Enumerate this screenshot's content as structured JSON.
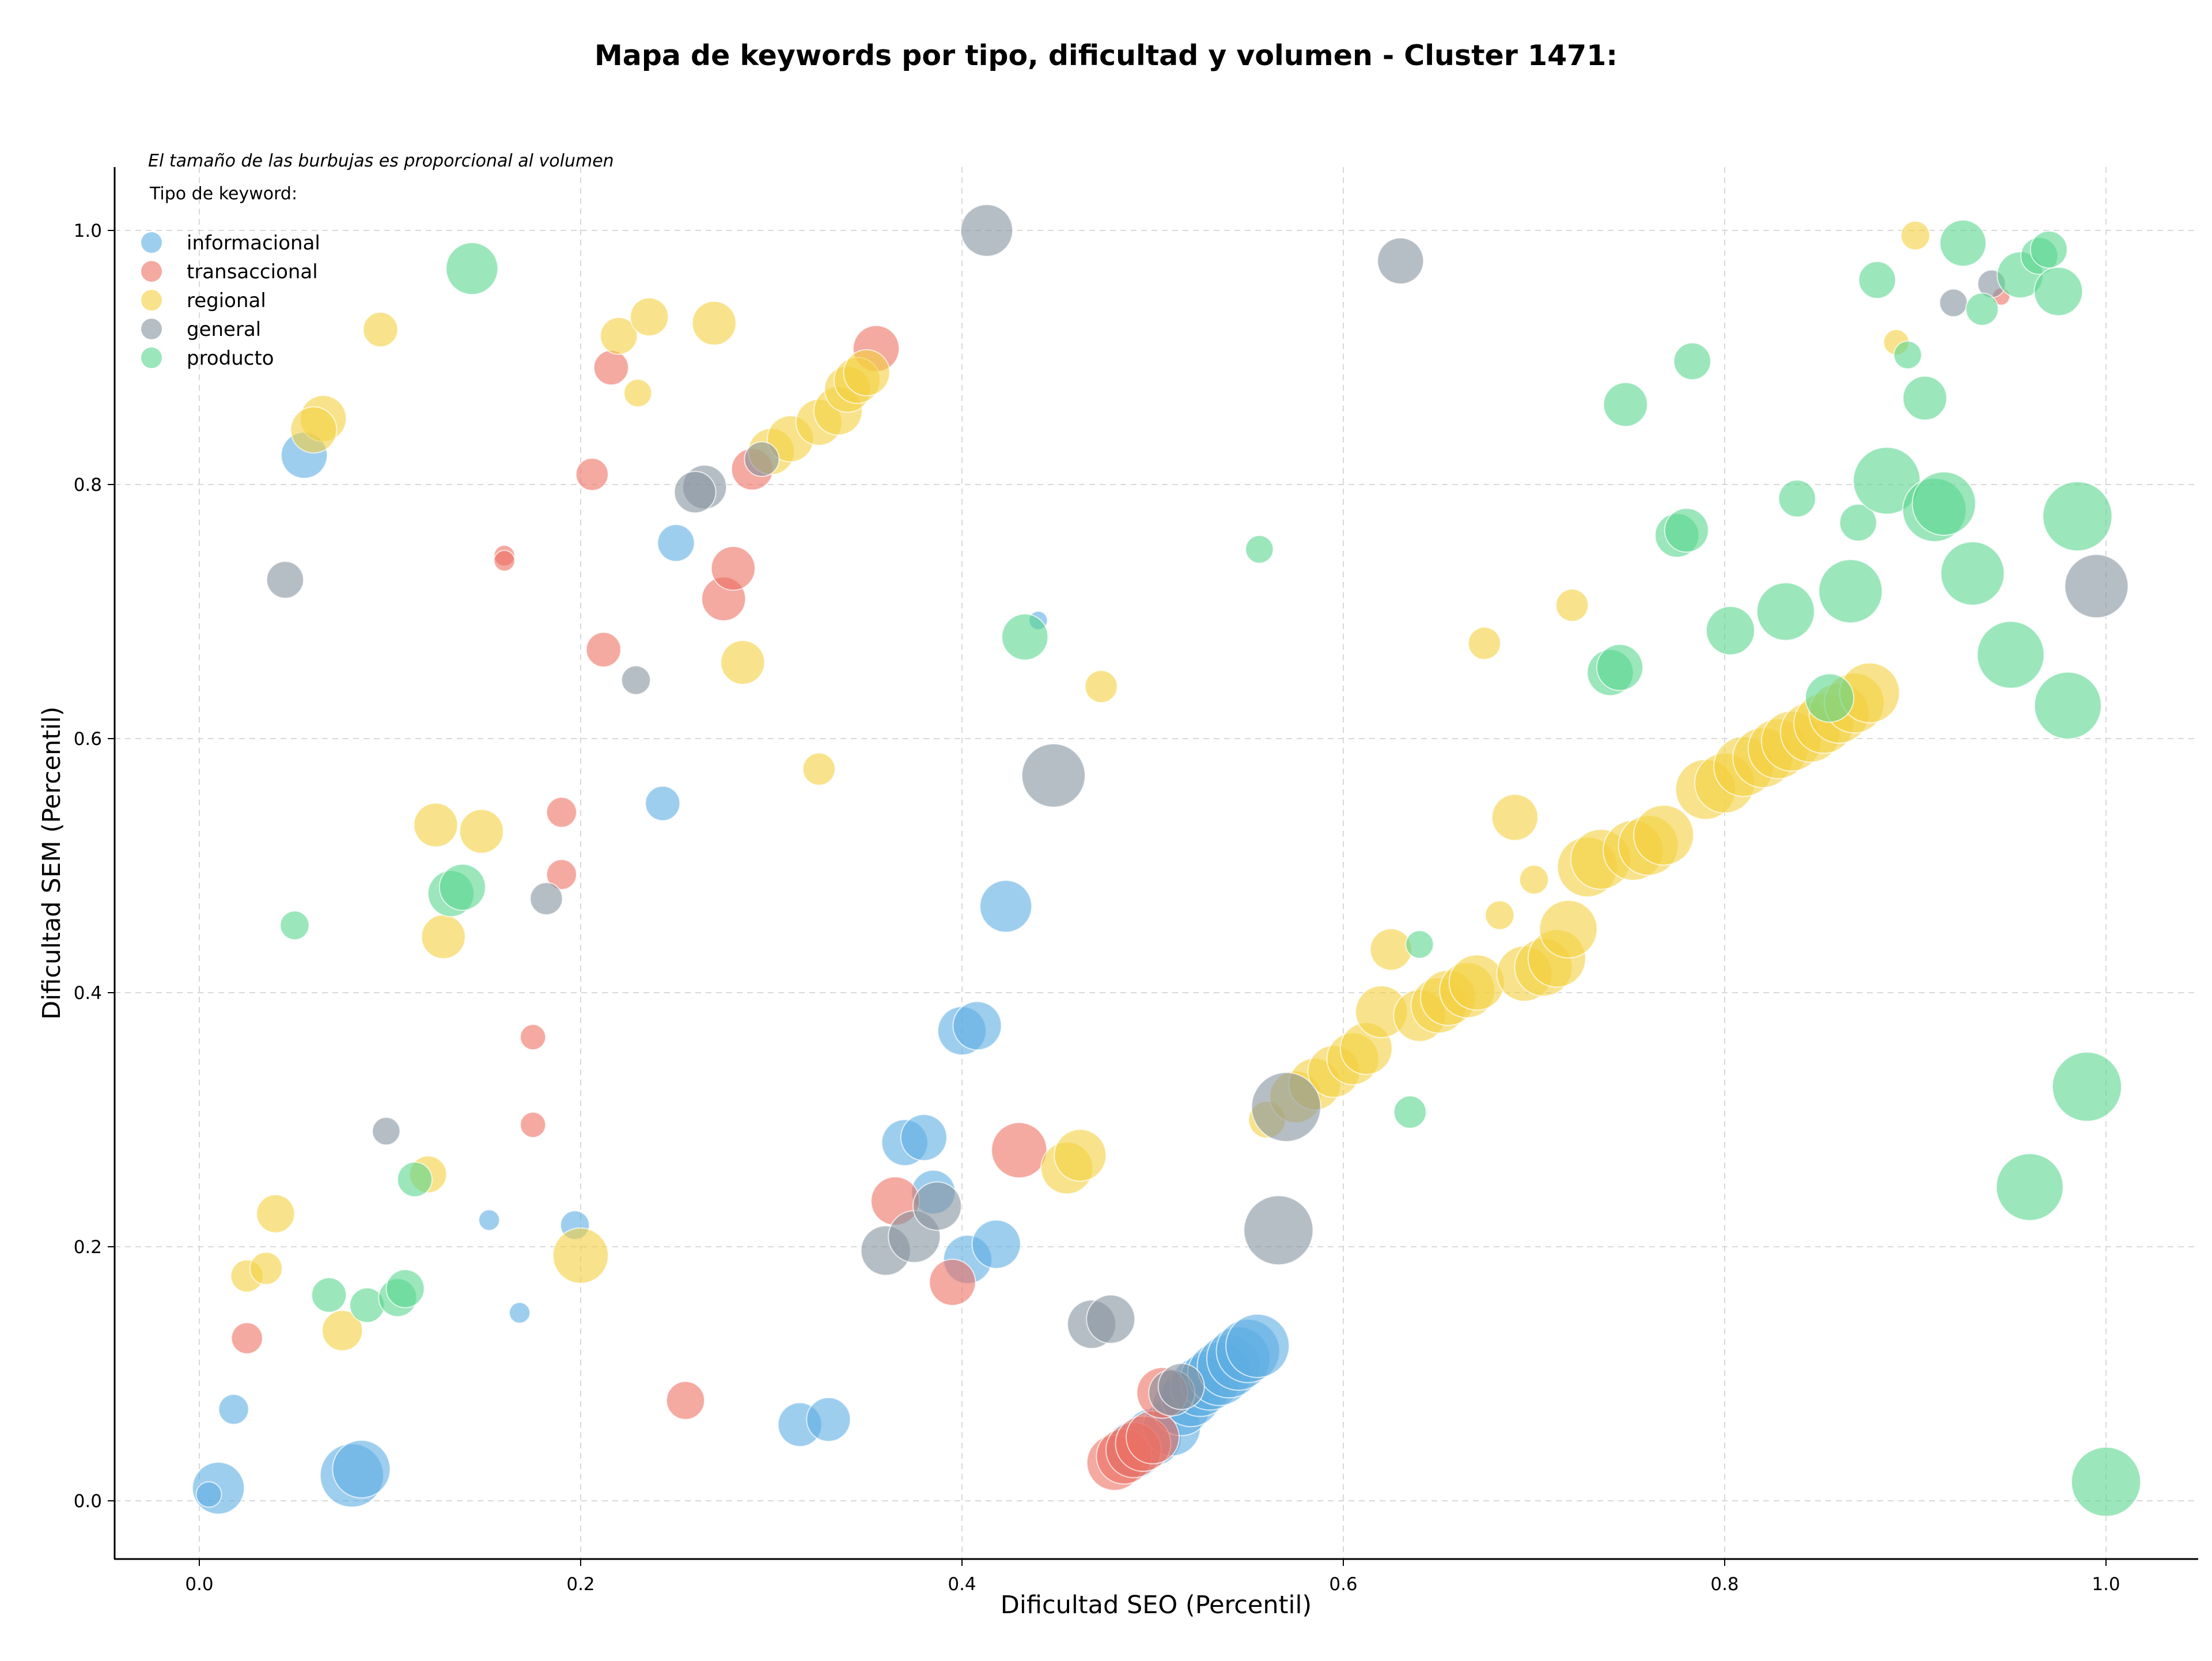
{
  "chart_data": {
    "type": "scatter",
    "title": "Mapa de keywords por tipo, dificultad y volumen - Cluster 1471:",
    "xlabel": "Dificultad SEO (Percentil)",
    "ylabel": "Dificultad SEM (Percentil)",
    "xlim": [
      -0.044,
      1.05
    ],
    "ylim": [
      -0.045,
      1.05
    ],
    "xticks": [
      "0.0",
      "0.2",
      "0.4",
      "0.6",
      "0.8",
      "1.0"
    ],
    "yticks": [
      "0.0",
      "0.2",
      "0.4",
      "0.6",
      "0.8",
      "1.0"
    ],
    "grid": true,
    "legend_placement": "top-left",
    "note": "El tamaño de las burbujas es proporcional al volumen",
    "legend_title": "Tipo de keyword:",
    "series": [
      {
        "name": "informacional",
        "color": "#5dade2",
        "points": [
          [
            0.01,
            0.01,
            45
          ],
          [
            0.005,
            0.005,
            22
          ],
          [
            0.018,
            0.072,
            26
          ],
          [
            0.08,
            0.02,
            55
          ],
          [
            0.085,
            0.025,
            50
          ],
          [
            0.055,
            0.823,
            40
          ],
          [
            0.152,
            0.221,
            18
          ],
          [
            0.168,
            0.148,
            18
          ],
          [
            0.197,
            0.217,
            25
          ],
          [
            0.25,
            0.754,
            32
          ],
          [
            0.243,
            0.549,
            30
          ],
          [
            0.315,
            0.06,
            38
          ],
          [
            0.33,
            0.064,
            38
          ],
          [
            0.37,
            0.282,
            40
          ],
          [
            0.38,
            0.286,
            40
          ],
          [
            0.385,
            0.243,
            38
          ],
          [
            0.4,
            0.37,
            42
          ],
          [
            0.408,
            0.374,
            42
          ],
          [
            0.403,
            0.19,
            42
          ],
          [
            0.418,
            0.202,
            42
          ],
          [
            0.423,
            0.468,
            45
          ],
          [
            0.44,
            0.693,
            16
          ],
          [
            0.49,
            0.04,
            50
          ],
          [
            0.5,
            0.05,
            50
          ],
          [
            0.51,
            0.058,
            50
          ],
          [
            0.515,
            0.074,
            50
          ],
          [
            0.52,
            0.082,
            52
          ],
          [
            0.525,
            0.09,
            52
          ],
          [
            0.53,
            0.095,
            52
          ],
          [
            0.535,
            0.1,
            55
          ],
          [
            0.54,
            0.106,
            55
          ],
          [
            0.545,
            0.112,
            55
          ],
          [
            0.55,
            0.118,
            55
          ],
          [
            0.555,
            0.122,
            55
          ]
        ]
      },
      {
        "name": "transaccional",
        "color": "#ec7063",
        "points": [
          [
            0.025,
            0.128,
            27
          ],
          [
            0.16,
            0.744,
            18
          ],
          [
            0.16,
            0.74,
            18
          ],
          [
            0.175,
            0.365,
            22
          ],
          [
            0.175,
            0.296,
            22
          ],
          [
            0.19,
            0.542,
            26
          ],
          [
            0.19,
            0.493,
            26
          ],
          [
            0.206,
            0.808,
            28
          ],
          [
            0.212,
            0.67,
            30
          ],
          [
            0.216,
            0.892,
            30
          ],
          [
            0.255,
            0.079,
            33
          ],
          [
            0.275,
            0.71,
            38
          ],
          [
            0.28,
            0.734,
            38
          ],
          [
            0.29,
            0.812,
            36
          ],
          [
            0.355,
            0.907,
            40
          ],
          [
            0.365,
            0.236,
            42
          ],
          [
            0.395,
            0.172,
            40
          ],
          [
            0.43,
            0.276,
            48
          ],
          [
            0.48,
            0.03,
            48
          ],
          [
            0.485,
            0.035,
            48
          ],
          [
            0.49,
            0.04,
            48
          ],
          [
            0.495,
            0.045,
            48
          ],
          [
            0.5,
            0.05,
            46
          ],
          [
            0.505,
            0.085,
            44
          ],
          [
            0.945,
            0.948,
            15
          ]
        ]
      },
      {
        "name": "regional",
        "color": "#f4d03f",
        "points": [
          [
            0.025,
            0.177,
            28
          ],
          [
            0.035,
            0.183,
            28
          ],
          [
            0.04,
            0.226,
            33
          ],
          [
            0.065,
            0.852,
            40
          ],
          [
            0.06,
            0.843,
            40
          ],
          [
            0.075,
            0.134,
            35
          ],
          [
            0.095,
            0.922,
            30
          ],
          [
            0.12,
            0.257,
            32
          ],
          [
            0.124,
            0.532,
            38
          ],
          [
            0.128,
            0.444,
            38
          ],
          [
            0.148,
            0.527,
            38
          ],
          [
            0.2,
            0.193,
            48
          ],
          [
            0.22,
            0.917,
            32
          ],
          [
            0.23,
            0.872,
            24
          ],
          [
            0.236,
            0.932,
            33
          ],
          [
            0.27,
            0.927,
            38
          ],
          [
            0.285,
            0.66,
            38
          ],
          [
            0.3,
            0.826,
            40
          ],
          [
            0.31,
            0.836,
            40
          ],
          [
            0.325,
            0.849,
            40
          ],
          [
            0.335,
            0.858,
            42
          ],
          [
            0.34,
            0.875,
            40
          ],
          [
            0.345,
            0.882,
            40
          ],
          [
            0.35,
            0.888,
            40
          ],
          [
            0.325,
            0.576,
            28
          ],
          [
            0.455,
            0.262,
            45
          ],
          [
            0.462,
            0.272,
            45
          ],
          [
            0.473,
            0.641,
            28
          ],
          [
            0.56,
            0.3,
            32
          ],
          [
            0.575,
            0.318,
            45
          ],
          [
            0.585,
            0.328,
            45
          ],
          [
            0.595,
            0.338,
            45
          ],
          [
            0.605,
            0.348,
            45
          ],
          [
            0.612,
            0.356,
            45
          ],
          [
            0.62,
            0.385,
            45
          ],
          [
            0.625,
            0.434,
            36
          ],
          [
            0.64,
            0.382,
            45
          ],
          [
            0.65,
            0.39,
            48
          ],
          [
            0.655,
            0.396,
            48
          ],
          [
            0.665,
            0.402,
            48
          ],
          [
            0.67,
            0.408,
            48
          ],
          [
            0.674,
            0.675,
            28
          ],
          [
            0.682,
            0.461,
            25
          ],
          [
            0.69,
            0.538,
            40
          ],
          [
            0.695,
            0.415,
            48
          ],
          [
            0.7,
            0.489,
            25
          ],
          [
            0.705,
            0.42,
            50
          ],
          [
            0.712,
            0.427,
            50
          ],
          [
            0.718,
            0.45,
            50
          ],
          [
            0.72,
            0.705,
            28
          ],
          [
            0.728,
            0.499,
            52
          ],
          [
            0.735,
            0.505,
            52
          ],
          [
            0.752,
            0.512,
            52
          ],
          [
            0.76,
            0.516,
            52
          ],
          [
            0.768,
            0.524,
            52
          ],
          [
            0.79,
            0.56,
            52
          ],
          [
            0.8,
            0.565,
            52
          ],
          [
            0.81,
            0.578,
            52
          ],
          [
            0.82,
            0.585,
            52
          ],
          [
            0.828,
            0.592,
            52
          ],
          [
            0.835,
            0.598,
            52
          ],
          [
            0.845,
            0.605,
            52
          ],
          [
            0.852,
            0.612,
            52
          ],
          [
            0.86,
            0.62,
            52
          ],
          [
            0.868,
            0.628,
            52
          ],
          [
            0.876,
            0.636,
            52
          ],
          [
            0.89,
            0.912,
            22
          ],
          [
            0.9,
            0.996,
            25
          ]
        ]
      },
      {
        "name": "general",
        "color": "#85929e",
        "points": [
          [
            0.045,
            0.725,
            32
          ],
          [
            0.098,
            0.291,
            24
          ],
          [
            0.182,
            0.474,
            28
          ],
          [
            0.229,
            0.646,
            25
          ],
          [
            0.265,
            0.798,
            38
          ],
          [
            0.26,
            0.794,
            36
          ],
          [
            0.295,
            0.82,
            30
          ],
          [
            0.36,
            0.197,
            43
          ],
          [
            0.375,
            0.208,
            45
          ],
          [
            0.387,
            0.232,
            42
          ],
          [
            0.413,
            1.0,
            45
          ],
          [
            0.448,
            0.571,
            55
          ],
          [
            0.468,
            0.139,
            42
          ],
          [
            0.478,
            0.143,
            42
          ],
          [
            0.51,
            0.085,
            40
          ],
          [
            0.515,
            0.09,
            40
          ],
          [
            0.566,
            0.213,
            60
          ],
          [
            0.57,
            0.31,
            60
          ],
          [
            0.63,
            0.976,
            40
          ],
          [
            0.92,
            0.943,
            24
          ],
          [
            0.94,
            0.958,
            24
          ],
          [
            0.995,
            0.72,
            55
          ]
        ]
      },
      {
        "name": "producto",
        "color": "#58d68d",
        "points": [
          [
            0.05,
            0.453,
            25
          ],
          [
            0.068,
            0.162,
            30
          ],
          [
            0.088,
            0.154,
            30
          ],
          [
            0.104,
            0.16,
            33
          ],
          [
            0.108,
            0.167,
            33
          ],
          [
            0.113,
            0.253,
            30
          ],
          [
            0.132,
            0.478,
            40
          ],
          [
            0.138,
            0.483,
            40
          ],
          [
            0.143,
            0.97,
            45
          ],
          [
            0.433,
            0.68,
            40
          ],
          [
            0.556,
            0.749,
            24
          ],
          [
            0.635,
            0.306,
            28
          ],
          [
            0.64,
            0.438,
            24
          ],
          [
            0.74,
            0.652,
            40
          ],
          [
            0.745,
            0.656,
            40
          ],
          [
            0.748,
            0.863,
            38
          ],
          [
            0.775,
            0.76,
            38
          ],
          [
            0.78,
            0.764,
            38
          ],
          [
            0.783,
            0.897,
            32
          ],
          [
            0.803,
            0.685,
            42
          ],
          [
            0.832,
            0.7,
            50
          ],
          [
            0.838,
            0.789,
            32
          ],
          [
            0.855,
            0.632,
            42
          ],
          [
            0.866,
            0.716,
            55
          ],
          [
            0.87,
            0.77,
            32
          ],
          [
            0.88,
            0.961,
            32
          ],
          [
            0.885,
            0.803,
            58
          ],
          [
            0.896,
            0.902,
            24
          ],
          [
            0.905,
            0.868,
            38
          ],
          [
            0.91,
            0.78,
            55
          ],
          [
            0.915,
            0.785,
            55
          ],
          [
            0.925,
            0.99,
            40
          ],
          [
            0.93,
            0.73,
            55
          ],
          [
            0.935,
            0.938,
            28
          ],
          [
            0.95,
            0.666,
            58
          ],
          [
            0.955,
            0.965,
            40
          ],
          [
            0.96,
            0.247,
            58
          ],
          [
            0.965,
            0.98,
            32
          ],
          [
            0.97,
            0.985,
            32
          ],
          [
            0.975,
            0.952,
            42
          ],
          [
            0.98,
            0.626,
            58
          ],
          [
            0.985,
            0.775,
            60
          ],
          [
            0.99,
            0.326,
            60
          ],
          [
            1.0,
            0.015,
            60
          ]
        ]
      }
    ]
  }
}
